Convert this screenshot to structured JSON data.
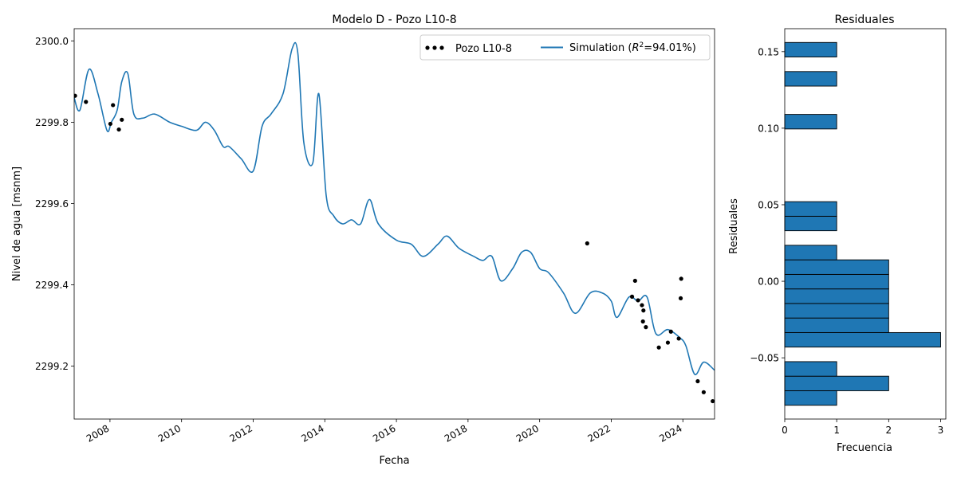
{
  "chart_data": [
    {
      "type": "scatter+line",
      "title": "Modelo D - Pozo L10-8",
      "xlabel": "Fecha",
      "ylabel": "Nivel de agua [msnm]",
      "xlim": [
        "2007-01-01",
        "2024-11-20"
      ],
      "ylim": [
        2299.07,
        2300.03
      ],
      "grid": false,
      "legend_position": "top-right",
      "x_ticks": [
        "2008",
        "2010",
        "2012",
        "2014",
        "2016",
        "2018",
        "2020",
        "2022",
        "2024"
      ],
      "y_ticks": [
        "2299.2",
        "2299.4",
        "2299.6",
        "2299.8",
        "2300.0"
      ],
      "series": [
        {
          "name": "Pozo L10-8",
          "kind": "scatter",
          "color": "#000000",
          "x": [
            "2007-01-10",
            "2007-05-01",
            "2008-01-05",
            "2008-02-01",
            "2008-04-01",
            "2008-05-01",
            "2021-05-01",
            "2022-08-01",
            "2022-09-01",
            "2022-10-01",
            "2022-11-10",
            "2022-11-20",
            "2022-11-25",
            "2022-12-20",
            "2023-05-01",
            "2023-08-01",
            "2023-09-01",
            "2023-11-20",
            "2023-12-10",
            "2023-12-15",
            "2024-06-01",
            "2024-08-01",
            "2024-11-01"
          ],
          "y": [
            2299.865,
            2299.85,
            2299.796,
            2299.842,
            2299.782,
            2299.806,
            2299.502,
            2299.371,
            2299.41,
            2299.362,
            2299.35,
            2299.31,
            2299.337,
            2299.296,
            2299.246,
            2299.258,
            2299.285,
            2299.268,
            2299.367,
            2299.415,
            2299.163,
            2299.136,
            2299.114
          ]
        },
        {
          "name": "Simulation ($R^2$=94.01%)",
          "legend_plain": "Simulation (",
          "legend_r": "R",
          "legend_sup": "2",
          "legend_tail": "=94.01%)",
          "kind": "line",
          "color": "#1f77b4",
          "x": [
            "2007-01-01",
            "2007-03-01",
            "2007-06-01",
            "2007-09-01",
            "2007-12-01",
            "2008-01-15",
            "2008-03-15",
            "2008-05-01",
            "2008-07-01",
            "2008-09-01",
            "2008-12-01",
            "2009-04-01",
            "2009-09-01",
            "2010-01-01",
            "2010-06-01",
            "2010-09-01",
            "2010-12-01",
            "2011-03-01",
            "2011-05-01",
            "2011-09-01",
            "2012-01-01",
            "2012-04-01",
            "2012-07-01",
            "2012-11-01",
            "2013-02-01",
            "2013-04-01",
            "2013-06-01",
            "2013-09-01",
            "2013-11-01",
            "2014-01-15",
            "2014-04-01",
            "2014-07-01",
            "2014-10-01",
            "2015-01-01",
            "2015-04-01",
            "2015-07-01",
            "2016-01-01",
            "2016-06-01",
            "2016-10-01",
            "2017-03-01",
            "2017-06-01",
            "2017-10-01",
            "2018-03-01",
            "2018-06-01",
            "2018-09-01",
            "2018-12-01",
            "2019-04-01",
            "2019-07-01",
            "2019-10-01",
            "2020-01-01",
            "2020-04-01",
            "2020-09-01",
            "2021-01-01",
            "2021-06-01",
            "2021-10-01",
            "2022-01-01",
            "2022-03-01",
            "2022-07-01",
            "2022-10-01",
            "2023-01-01",
            "2023-04-01",
            "2023-08-01",
            "2023-12-01",
            "2024-02-01",
            "2024-05-01",
            "2024-08-01",
            "2024-11-20"
          ],
          "y": [
            2299.86,
            2299.83,
            2299.93,
            2299.87,
            2299.78,
            2299.8,
            2299.83,
            2299.9,
            2299.92,
            2299.82,
            2299.81,
            2299.82,
            2299.8,
            2299.79,
            2299.78,
            2299.8,
            2299.78,
            2299.74,
            2299.74,
            2299.71,
            2299.68,
            2299.79,
            2299.82,
            2299.87,
            2299.98,
            2299.97,
            2299.75,
            2299.7,
            2299.87,
            2299.62,
            2299.57,
            2299.55,
            2299.56,
            2299.55,
            2299.61,
            2299.55,
            2299.51,
            2299.5,
            2299.47,
            2299.5,
            2299.52,
            2299.49,
            2299.47,
            2299.46,
            2299.47,
            2299.41,
            2299.44,
            2299.48,
            2299.48,
            2299.44,
            2299.43,
            2299.38,
            2299.33,
            2299.38,
            2299.38,
            2299.36,
            2299.32,
            2299.37,
            2299.36,
            2299.37,
            2299.28,
            2299.29,
            2299.27,
            2299.25,
            2299.18,
            2299.21,
            2299.19
          ]
        }
      ]
    },
    {
      "type": "bar",
      "orientation": "horizontal",
      "title": "Residuales",
      "xlabel": "Frecuencia",
      "ylabel": "Residuales",
      "xlim": [
        0,
        3.1
      ],
      "ylim": [
        -0.09,
        0.165
      ],
      "grid": false,
      "x_ticks": [
        "0",
        "1",
        "2",
        "3"
      ],
      "y_ticks": [
        "−0.05",
        "0.00",
        "0.05",
        "0.10",
        "0.15"
      ],
      "bar_color": "#1f77b4",
      "bins": [
        {
          "from": -0.081,
          "to": -0.0715,
          "count": 1
        },
        {
          "from": -0.0715,
          "to": -0.062,
          "count": 2
        },
        {
          "from": -0.062,
          "to": -0.0525,
          "count": 1
        },
        {
          "from": -0.043,
          "to": -0.0335,
          "count": 3
        },
        {
          "from": -0.0335,
          "to": -0.024,
          "count": 2
        },
        {
          "from": -0.024,
          "to": -0.0145,
          "count": 2
        },
        {
          "from": -0.0145,
          "to": -0.005,
          "count": 2
        },
        {
          "from": -0.005,
          "to": 0.0045,
          "count": 2
        },
        {
          "from": 0.0045,
          "to": 0.014,
          "count": 2
        },
        {
          "from": 0.014,
          "to": 0.0235,
          "count": 1
        },
        {
          "from": 0.033,
          "to": 0.0425,
          "count": 1
        },
        {
          "from": 0.0425,
          "to": 0.052,
          "count": 1
        },
        {
          "from": 0.0995,
          "to": 0.109,
          "count": 1
        },
        {
          "from": 0.1275,
          "to": 0.137,
          "count": 1
        },
        {
          "from": 0.1465,
          "to": 0.156,
          "count": 1
        }
      ]
    }
  ]
}
